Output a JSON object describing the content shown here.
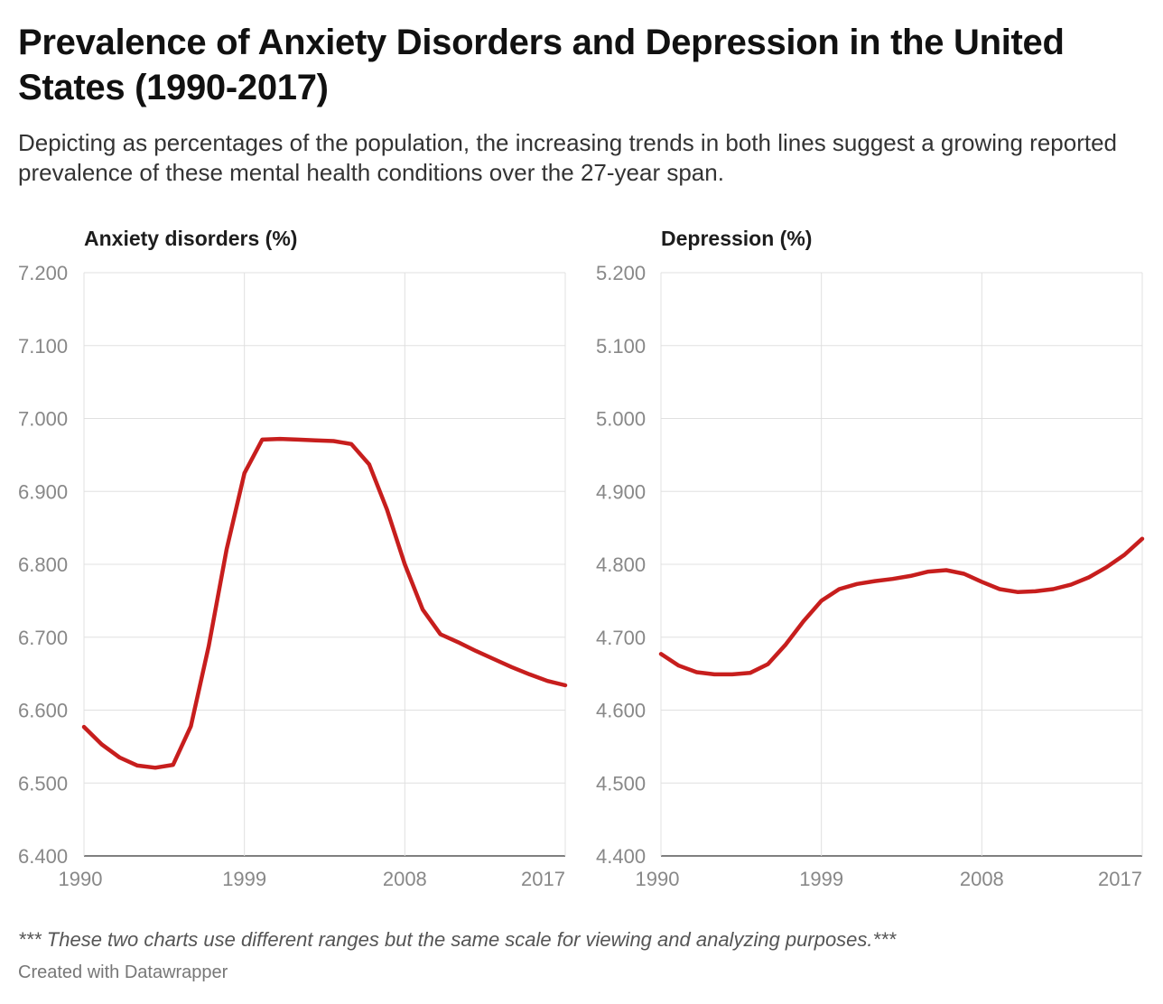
{
  "title": "Prevalence of Anxiety Disorders and Depression in the United States (1990-2017)",
  "subtitle": "Depicting as percentages of the population, the increasing trends in both lines suggest a growing reported prevalence of these mental health conditions over the 27-year span.",
  "notes": "*** These two charts use different ranges but the same scale for viewing and analyzing purposes.***",
  "credit": "Created with Datawrapper",
  "colors": {
    "line": "#c71e1d",
    "grid": "#e0e0e0",
    "axis": "#333333",
    "tick_label": "#888888"
  },
  "chart_data": [
    {
      "type": "line",
      "title": "Anxiety disorders (%)",
      "x_ticks": [
        1990,
        1999,
        2008,
        2017
      ],
      "y_ticks": [
        "7.200",
        "7.100",
        "7.000",
        "6.900",
        "6.800",
        "6.700",
        "6.600",
        "6.500",
        "6.400"
      ],
      "ylim": [
        6.4,
        7.2
      ],
      "xlim": [
        1990,
        2017
      ],
      "grid": true,
      "series": [
        {
          "x": [
            1990,
            1991,
            1992,
            1993,
            1994,
            1995,
            1996,
            1997,
            1998,
            1999,
            2000,
            2001,
            2002,
            2003,
            2004,
            2005,
            2006,
            2007,
            2008,
            2009,
            2010,
            2011,
            2012,
            2013,
            2014,
            2015,
            2016,
            2017
          ],
          "values": [
            6.577,
            6.553,
            6.535,
            6.524,
            6.521,
            6.525,
            6.578,
            6.688,
            6.82,
            6.925,
            6.971,
            6.972,
            6.971,
            6.97,
            6.969,
            6.965,
            6.937,
            6.875,
            6.8,
            6.738,
            6.704,
            6.693,
            6.681,
            6.67,
            6.659,
            6.649,
            6.64,
            6.634
          ]
        }
      ]
    },
    {
      "type": "line",
      "title": "Depression (%)",
      "x_ticks": [
        1990,
        1999,
        2008,
        2017
      ],
      "y_ticks": [
        "5.200",
        "5.100",
        "5.000",
        "4.900",
        "4.800",
        "4.700",
        "4.600",
        "4.500",
        "4.400"
      ],
      "ylim": [
        4.4,
        5.2
      ],
      "xlim": [
        1990,
        2017
      ],
      "grid": true,
      "series": [
        {
          "x": [
            1990,
            1991,
            1992,
            1993,
            1994,
            1995,
            1996,
            1997,
            1998,
            1999,
            2000,
            2001,
            2002,
            2003,
            2004,
            2005,
            2006,
            2007,
            2008,
            2009,
            2010,
            2011,
            2012,
            2013,
            2014,
            2015,
            2016,
            2017
          ],
          "values": [
            4.677,
            4.661,
            4.652,
            4.649,
            4.649,
            4.651,
            4.663,
            4.69,
            4.722,
            4.75,
            4.766,
            4.773,
            4.777,
            4.78,
            4.784,
            4.79,
            4.792,
            4.787,
            4.776,
            4.766,
            4.762,
            4.763,
            4.766,
            4.772,
            4.782,
            4.796,
            4.813,
            4.835
          ]
        }
      ]
    }
  ]
}
